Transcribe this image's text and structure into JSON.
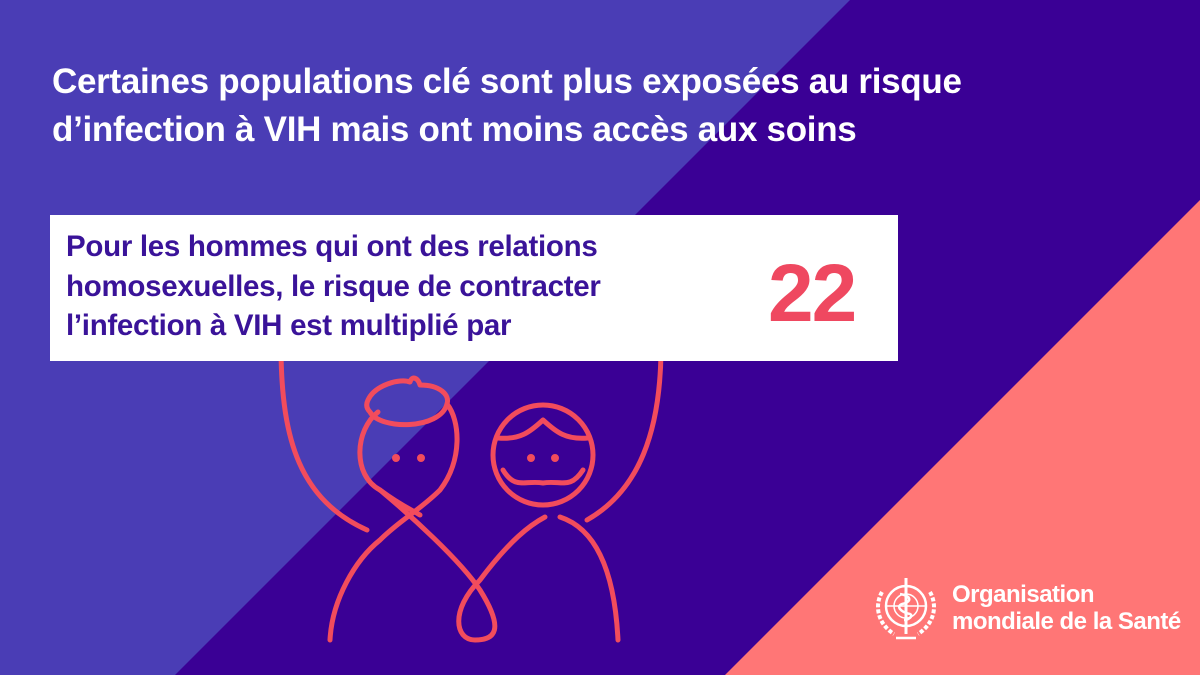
{
  "headline": {
    "line1": "Certaines populations clé sont plus exposées au risque",
    "line2": "d’infection à VIH mais ont moins accès aux soins"
  },
  "callout": {
    "line1": "Pour les hommes qui ont des relations",
    "line2": "homosexuelles, le risque de contracter",
    "line3": "l’infection à VIH est multiplié par",
    "value": "22"
  },
  "logo": {
    "icon": "who-emblem-icon",
    "line1": "Organisation",
    "line2": "mondiale de la Santé"
  },
  "colors": {
    "background_light": "#4a3db5",
    "background_dark": "#3a0095",
    "accent_coral": "#ff7676",
    "figure_stroke": "#f24c5c",
    "text_purple": "#3a1399",
    "stat_red": "#ef4860"
  }
}
